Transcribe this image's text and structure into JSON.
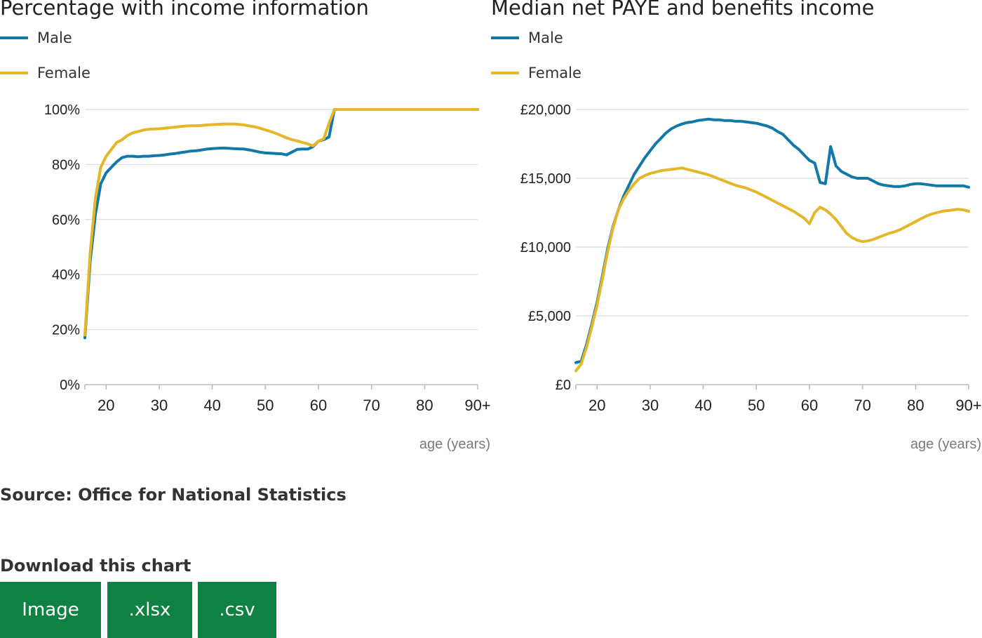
{
  "colors": {
    "male": "#1079a8",
    "female": "#e4b729",
    "grid": "#dcdcdc",
    "axis": "#bbbbbb",
    "button": "#0f8243",
    "axis_label": "#7a7a7a"
  },
  "source": "Source: Office for National Statistics",
  "download": {
    "title": "Download this chart",
    "buttons": [
      "Image",
      ".xlsx",
      ".csv"
    ]
  },
  "chart_data": [
    {
      "type": "line",
      "title": "Percentage with income information",
      "xlabel": "age (years)",
      "ylabel": "",
      "xlim": [
        16,
        90
      ],
      "ylim": [
        0,
        100
      ],
      "xticks": [
        20,
        30,
        40,
        50,
        60,
        70,
        80,
        90
      ],
      "xtick_labels": [
        "20",
        "30",
        "40",
        "50",
        "60",
        "70",
        "80",
        "90+"
      ],
      "yticks": [
        0,
        20,
        40,
        60,
        80,
        100
      ],
      "ytick_labels": [
        "0%",
        "20%",
        "40%",
        "60%",
        "80%",
        "100%"
      ],
      "grid": true,
      "legend": "top-left",
      "x": [
        16,
        17,
        18,
        19,
        20,
        21,
        22,
        23,
        24,
        25,
        26,
        27,
        28,
        29,
        30,
        31,
        32,
        33,
        34,
        35,
        36,
        37,
        38,
        39,
        40,
        41,
        42,
        43,
        44,
        45,
        46,
        47,
        48,
        49,
        50,
        51,
        52,
        53,
        54,
        55,
        56,
        57,
        58,
        59,
        60,
        61,
        62,
        63,
        64,
        65,
        66,
        67,
        68,
        69,
        70,
        71,
        72,
        73,
        74,
        75,
        76,
        77,
        78,
        79,
        80,
        81,
        82,
        83,
        84,
        85,
        86,
        87,
        88,
        89,
        90
      ],
      "series": [
        {
          "name": "Male",
          "color": "#1079a8",
          "values": [
            17,
            45,
            62,
            73,
            77,
            79,
            81,
            82.5,
            83,
            83,
            82.8,
            83,
            83,
            83.2,
            83.3,
            83.5,
            83.8,
            84,
            84.3,
            84.6,
            84.9,
            85,
            85.3,
            85.6,
            85.8,
            85.9,
            86,
            85.9,
            85.8,
            85.7,
            85.6,
            85.3,
            84.9,
            84.5,
            84.2,
            84.1,
            84,
            83.9,
            83.5,
            84.5,
            85.5,
            85.6,
            85.6,
            86.5,
            88.5,
            89,
            90,
            100,
            100,
            100,
            100,
            100,
            100,
            100,
            100,
            100,
            100,
            100,
            100,
            100,
            100,
            100,
            100,
            100,
            100,
            100,
            100,
            100,
            100,
            100,
            100,
            100,
            100,
            100,
            100
          ]
        },
        {
          "name": "Female",
          "color": "#e4b729",
          "values": [
            18,
            48,
            68,
            79,
            83,
            85.5,
            88,
            89,
            90.5,
            91.5,
            92,
            92.5,
            92.8,
            92.9,
            93,
            93.2,
            93.4,
            93.6,
            93.8,
            94,
            94.1,
            94.1,
            94.2,
            94.4,
            94.5,
            94.6,
            94.7,
            94.7,
            94.7,
            94.6,
            94.4,
            94,
            93.7,
            93.2,
            92.6,
            92,
            91.3,
            90.5,
            89.7,
            89,
            88.6,
            88,
            87.5,
            86.8,
            88.5,
            89.3,
            95,
            100,
            100,
            100,
            100,
            100,
            100,
            100,
            100,
            100,
            100,
            100,
            100,
            100,
            100,
            100,
            100,
            100,
            100,
            100,
            100,
            100,
            100,
            100,
            100,
            100,
            100,
            100,
            100
          ]
        }
      ]
    },
    {
      "type": "line",
      "title": "Median net PAYE and benefits income",
      "xlabel": "age (years)",
      "ylabel": "",
      "xlim": [
        16,
        90
      ],
      "ylim": [
        0,
        20000
      ],
      "xticks": [
        20,
        30,
        40,
        50,
        60,
        70,
        80,
        90
      ],
      "xtick_labels": [
        "20",
        "30",
        "40",
        "50",
        "60",
        "70",
        "80",
        "90+"
      ],
      "yticks": [
        0,
        5000,
        10000,
        15000,
        20000
      ],
      "ytick_labels": [
        "£0",
        "£5,000",
        "£10,000",
        "£15,000",
        "£20,000"
      ],
      "grid": true,
      "legend": "top-left",
      "x": [
        16,
        17,
        18,
        19,
        20,
        21,
        22,
        23,
        24,
        25,
        26,
        27,
        28,
        29,
        30,
        31,
        32,
        33,
        34,
        35,
        36,
        37,
        38,
        39,
        40,
        41,
        42,
        43,
        44,
        45,
        46,
        47,
        48,
        49,
        50,
        51,
        52,
        53,
        54,
        55,
        56,
        57,
        58,
        59,
        60,
        61,
        62,
        63,
        64,
        65,
        66,
        67,
        68,
        69,
        70,
        71,
        72,
        73,
        74,
        75,
        76,
        77,
        78,
        79,
        80,
        81,
        82,
        83,
        84,
        85,
        86,
        87,
        88,
        89,
        90
      ],
      "series": [
        {
          "name": "Male",
          "color": "#1079a8",
          "values": [
            1600,
            1700,
            2900,
            4400,
            6000,
            7900,
            9900,
            11500,
            12700,
            13700,
            14500,
            15300,
            15900,
            16500,
            17000,
            17500,
            17900,
            18300,
            18600,
            18800,
            18950,
            19050,
            19100,
            19200,
            19250,
            19300,
            19250,
            19250,
            19200,
            19200,
            19150,
            19150,
            19100,
            19050,
            19000,
            18900,
            18800,
            18650,
            18400,
            18200,
            17800,
            17400,
            17100,
            16700,
            16300,
            16100,
            14700,
            14600,
            17300,
            15900,
            15500,
            15300,
            15100,
            15000,
            15000,
            15000,
            14800,
            14600,
            14500,
            14450,
            14400,
            14400,
            14450,
            14550,
            14600,
            14600,
            14550,
            14500,
            14450,
            14450,
            14450,
            14450,
            14450,
            14450,
            14350
          ]
        },
        {
          "name": "Female",
          "color": "#e4b729",
          "values": [
            1000,
            1500,
            2700,
            4200,
            5800,
            7700,
            9700,
            11400,
            12700,
            13500,
            14100,
            14600,
            15000,
            15200,
            15350,
            15450,
            15550,
            15600,
            15650,
            15700,
            15750,
            15650,
            15550,
            15450,
            15350,
            15250,
            15100,
            14950,
            14800,
            14650,
            14500,
            14400,
            14300,
            14150,
            14000,
            13800,
            13600,
            13400,
            13200,
            13000,
            12800,
            12600,
            12350,
            12100,
            11700,
            12500,
            12900,
            12700,
            12400,
            12000,
            11500,
            11000,
            10700,
            10500,
            10400,
            10450,
            10550,
            10700,
            10850,
            11000,
            11100,
            11250,
            11450,
            11650,
            11850,
            12050,
            12250,
            12400,
            12500,
            12600,
            12650,
            12700,
            12750,
            12700,
            12600
          ]
        }
      ]
    }
  ]
}
